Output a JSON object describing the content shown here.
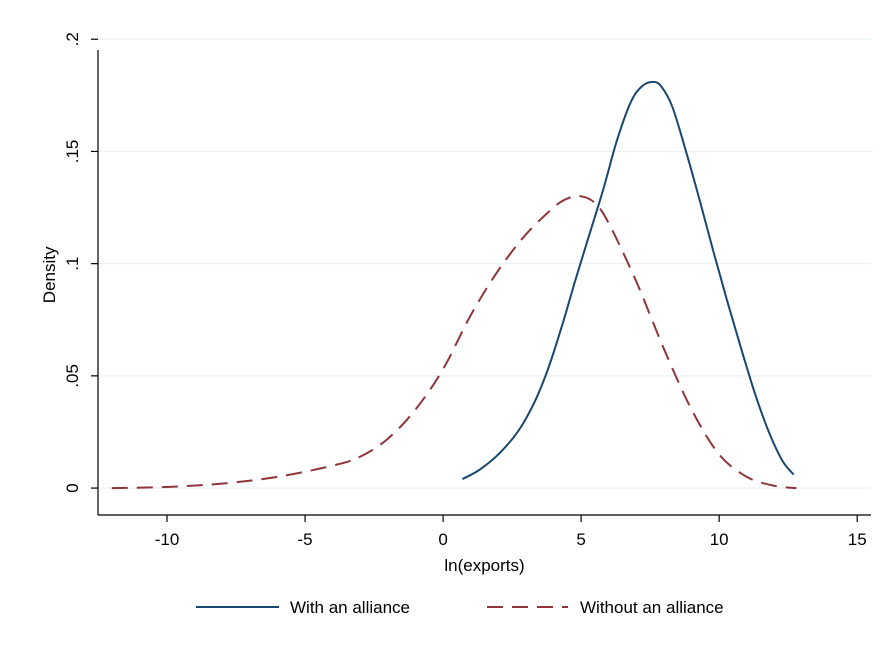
{
  "chart_data": {
    "type": "line",
    "xlabel": "ln(exports)",
    "ylabel": "Density",
    "xlim": [
      -12.5,
      15.5
    ],
    "ylim": [
      -0.012,
      0.205
    ],
    "x_ticks": [
      -10,
      -5,
      0,
      5,
      10,
      15
    ],
    "x_tick_labels": [
      "-10",
      "-5",
      "0",
      "5",
      "10",
      "15"
    ],
    "y_ticks": [
      0,
      0.05,
      0.1,
      0.15,
      0.2
    ],
    "y_tick_labels": [
      "0",
      ".05",
      ".1",
      ".15",
      ".2"
    ],
    "grid": "horizontal",
    "legend_position": "bottom",
    "series": [
      {
        "name": "With an alliance",
        "color": "#1a476f",
        "dash": "solid",
        "x": [
          0.7,
          1.3,
          2.0,
          2.7,
          3.3,
          3.8,
          4.3,
          4.8,
          5.3,
          5.8,
          6.3,
          6.8,
          7.2,
          7.6,
          7.9,
          8.3,
          8.8,
          9.3,
          9.8,
          10.3,
          10.8,
          11.3,
          11.8,
          12.3,
          12.7
        ],
        "y": [
          0.004,
          0.008,
          0.015,
          0.025,
          0.038,
          0.053,
          0.072,
          0.093,
          0.113,
          0.133,
          0.155,
          0.172,
          0.179,
          0.181,
          0.179,
          0.17,
          0.15,
          0.128,
          0.105,
          0.083,
          0.062,
          0.042,
          0.025,
          0.012,
          0.006
        ]
      },
      {
        "name": "Without an alliance",
        "color": "#90353b",
        "dash": "long-dash",
        "x": [
          -12.0,
          -10.0,
          -8.0,
          -6.0,
          -4.0,
          -3.0,
          -2.0,
          -1.0,
          0.0,
          1.0,
          2.0,
          3.0,
          4.0,
          4.5,
          5.0,
          5.5,
          6.0,
          7.0,
          8.0,
          9.0,
          10.0,
          11.0,
          12.0,
          12.8
        ],
        "y": [
          0.0,
          0.0005,
          0.002,
          0.005,
          0.01,
          0.014,
          0.022,
          0.035,
          0.053,
          0.077,
          0.097,
          0.113,
          0.125,
          0.129,
          0.13,
          0.127,
          0.118,
          0.092,
          0.062,
          0.035,
          0.015,
          0.005,
          0.001,
          0.0
        ]
      }
    ]
  }
}
